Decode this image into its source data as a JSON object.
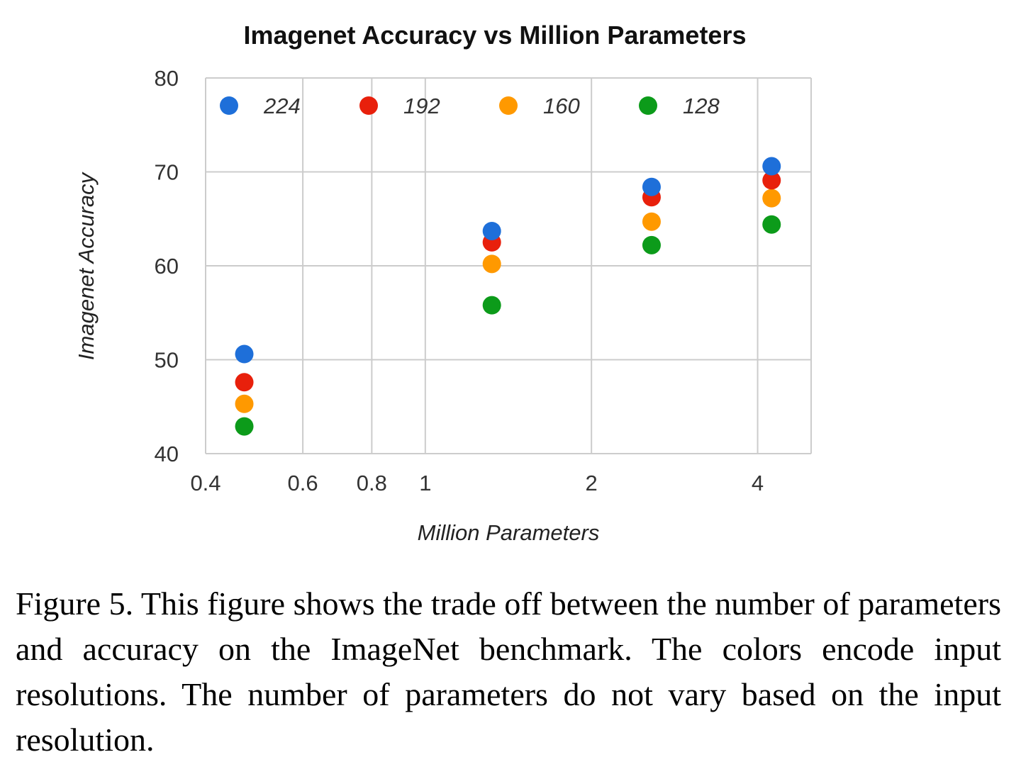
{
  "chart_data": {
    "type": "scatter",
    "title": "Imagenet Accuracy vs Million Parameters",
    "xlabel": "Million Parameters",
    "ylabel": "Imagenet Accuracy",
    "xscale": "log",
    "xlim": [
      0.4,
      5.0
    ],
    "ylim": [
      40,
      80
    ],
    "xticks": [
      0.4,
      0.6,
      0.8,
      1,
      2,
      4
    ],
    "xtick_labels": [
      "0.4",
      "0.6",
      "0.8",
      "1",
      "2",
      "4"
    ],
    "yticks": [
      40,
      50,
      60,
      70,
      80
    ],
    "ytick_labels": [
      "40",
      "50",
      "60",
      "70",
      "80"
    ],
    "grid": true,
    "legend_position": "top",
    "x": [
      0.47,
      1.32,
      2.57,
      4.24
    ],
    "series": [
      {
        "name": "224",
        "color": "#1e6fd9",
        "values": [
          50.6,
          63.7,
          68.4,
          70.6
        ]
      },
      {
        "name": "192",
        "color": "#e8200c",
        "values": [
          47.6,
          62.5,
          67.3,
          69.1
        ]
      },
      {
        "name": "160",
        "color": "#ff9900",
        "values": [
          45.3,
          60.2,
          64.7,
          67.2
        ]
      },
      {
        "name": "128",
        "color": "#0c9b1a",
        "values": [
          42.9,
          55.8,
          62.2,
          64.4
        ]
      }
    ]
  },
  "caption": "Figure 5. This figure shows the trade off between the number of parameters and accuracy on the ImageNet benchmark. The colors encode input resolutions. The number of parameters do not vary based on the input resolution."
}
